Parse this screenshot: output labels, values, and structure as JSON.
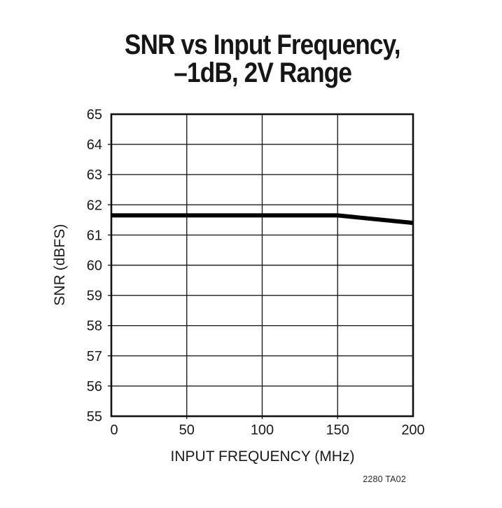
{
  "page": {
    "background": "#ffffff",
    "ink_color": "#1a1a1a"
  },
  "title": {
    "line1": "SNR vs Input Frequency,",
    "line2": "–1dB, 2V Range"
  },
  "note": "2280 TA02",
  "chart_data": {
    "type": "line",
    "title": "SNR vs Input Frequency, –1dB, 2V Range",
    "xlabel": "INPUT FREQUENCY (MHz)",
    "ylabel": "SNR (dBFS)",
    "xlim": [
      0,
      200
    ],
    "ylim": [
      55,
      65
    ],
    "x_ticks": [
      0,
      50,
      100,
      150,
      200
    ],
    "y_ticks": [
      55,
      56,
      57,
      58,
      59,
      60,
      61,
      62,
      63,
      64,
      65
    ],
    "grid": true,
    "legend": "none",
    "series": [
      {
        "name": "SNR",
        "color": "#000000",
        "line_width": 6,
        "points": [
          [
            0,
            61.65
          ],
          [
            50,
            61.65
          ],
          [
            100,
            61.65
          ],
          [
            150,
            61.65
          ],
          [
            200,
            61.4
          ]
        ]
      }
    ]
  }
}
